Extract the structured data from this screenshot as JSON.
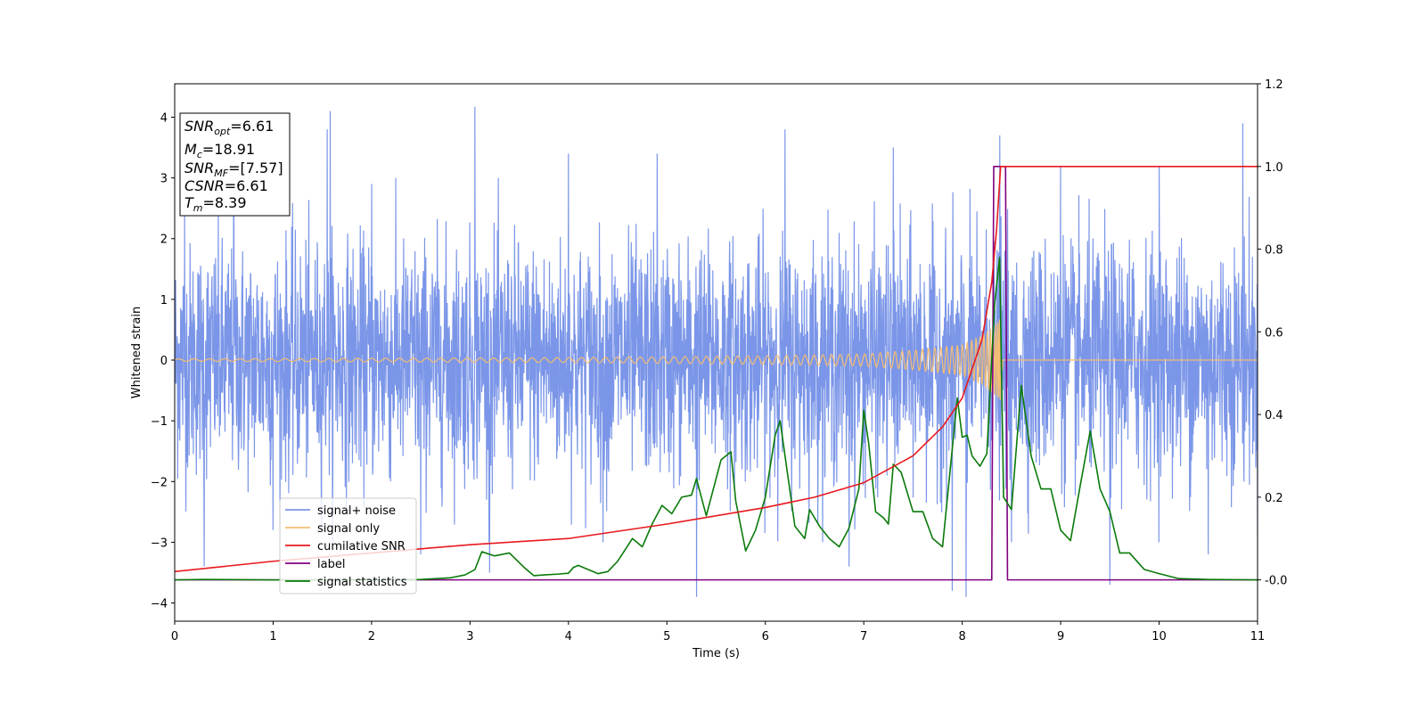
{
  "chart_data": {
    "type": "line",
    "xlabel": "Time (s)",
    "ylabel": "Whitened strain",
    "xlim": [
      0,
      11
    ],
    "ylim": [
      -4.3,
      4.55
    ],
    "y2lim": [
      -0.1,
      1.2
    ],
    "xticks": [
      0,
      1,
      2,
      3,
      4,
      5,
      6,
      7,
      8,
      9,
      10,
      11
    ],
    "yticks": [
      -4,
      -3,
      -2,
      -1,
      0,
      1,
      2,
      3,
      4
    ],
    "y2ticks": [
      "-0.0",
      "0.2",
      "0.4",
      "0.6",
      "0.8",
      "1.0",
      "1.2"
    ],
    "y2tick_values": [
      0.0,
      0.2,
      0.4,
      0.6,
      0.8,
      1.0,
      1.2
    ],
    "grid": false,
    "legend_position": "lower-left",
    "merger_time": 8.39,
    "series": [
      {
        "name": "signal+ noise",
        "axis": "left",
        "color": "#7b96e8",
        "description_values": "gaussian-like noise, typical range -2.5 to 2.5, max 4.17 near t=3.05, min -3.9 near t=5.3",
        "x": [
          0.1,
          0.3,
          0.6,
          1.0,
          1.55,
          1.58,
          2.0,
          2.5,
          3.05,
          3.2,
          4.0,
          4.35,
          4.9,
          5.3,
          6.2,
          6.85,
          7.3,
          7.9,
          8.04,
          8.38,
          8.5,
          9.0,
          9.5,
          10.0,
          10.5,
          10.85,
          11.0
        ],
        "values": [
          2.5,
          -3.4,
          3.5,
          -2.8,
          3.8,
          4.1,
          2.9,
          -3.2,
          4.17,
          -3.5,
          3.4,
          -3.0,
          3.4,
          -3.9,
          3.8,
          -3.4,
          3.5,
          -3.8,
          -3.9,
          3.7,
          -3.0,
          3.2,
          -3.7,
          3.2,
          -3.2,
          3.9,
          -2.9
        ]
      },
      {
        "name": "signal only",
        "axis": "left",
        "color": "#f5bd72",
        "x": [
          0,
          4,
          6,
          7,
          7.5,
          8.0,
          8.2,
          8.35,
          8.39,
          8.42,
          11
        ],
        "amplitude": [
          0.02,
          0.04,
          0.07,
          0.1,
          0.16,
          0.25,
          0.4,
          0.6,
          0.7,
          0,
          0
        ]
      },
      {
        "name": "cumilative SNR",
        "axis": "right",
        "color": "#e8191e",
        "x": [
          0,
          1,
          2,
          3,
          4,
          5,
          6,
          6.5,
          7,
          7.5,
          7.8,
          8.0,
          8.2,
          8.3,
          8.35,
          8.39,
          8.42,
          11
        ],
        "values": [
          0.02,
          0.045,
          0.065,
          0.085,
          0.1,
          0.135,
          0.175,
          0.2,
          0.235,
          0.3,
          0.37,
          0.44,
          0.58,
          0.72,
          0.85,
          1.0,
          1.0,
          1.0
        ]
      },
      {
        "name": "label",
        "axis": "right",
        "color": "#800080",
        "x": [
          0,
          8.3,
          8.32,
          8.44,
          8.46,
          11
        ],
        "values": [
          0,
          0,
          1.0,
          1.0,
          0,
          0
        ]
      },
      {
        "name": "signal statistics",
        "axis": "right",
        "color": "#0a7a0a",
        "x": [
          0,
          0.3,
          1.0,
          2.0,
          2.5,
          2.8,
          2.95,
          3.05,
          3.12,
          3.25,
          3.4,
          3.55,
          3.65,
          3.75,
          3.9,
          4.0,
          4.05,
          4.1,
          4.2,
          4.3,
          4.4,
          4.5,
          4.65,
          4.75,
          4.85,
          4.95,
          5.05,
          5.15,
          5.25,
          5.3,
          5.4,
          5.55,
          5.65,
          5.7,
          5.8,
          5.9,
          6.0,
          6.1,
          6.15,
          6.2,
          6.3,
          6.4,
          6.45,
          6.55,
          6.65,
          6.75,
          6.85,
          6.95,
          7.0,
          7.05,
          7.12,
          7.2,
          7.25,
          7.3,
          7.38,
          7.5,
          7.6,
          7.7,
          7.8,
          7.95,
          8.0,
          8.05,
          8.1,
          8.18,
          8.25,
          8.33,
          8.38,
          8.42,
          8.5,
          8.6,
          8.7,
          8.8,
          8.9,
          9.0,
          9.1,
          9.2,
          9.3,
          9.4,
          9.5,
          9.6,
          9.7,
          9.85,
          10.0,
          10.2,
          10.5,
          11.0
        ],
        "values": [
          0,
          0.001,
          0,
          0,
          0.001,
          0.005,
          0.012,
          0.025,
          0.068,
          0.058,
          0.065,
          0.03,
          0.01,
          0.012,
          0.014,
          0.016,
          0.03,
          0.035,
          0.025,
          0.015,
          0.02,
          0.045,
          0.1,
          0.08,
          0.135,
          0.18,
          0.16,
          0.2,
          0.205,
          0.245,
          0.155,
          0.29,
          0.31,
          0.19,
          0.07,
          0.12,
          0.2,
          0.35,
          0.385,
          0.3,
          0.13,
          0.1,
          0.17,
          0.13,
          0.1,
          0.08,
          0.125,
          0.22,
          0.41,
          0.33,
          0.165,
          0.15,
          0.135,
          0.28,
          0.26,
          0.165,
          0.165,
          0.1,
          0.08,
          0.44,
          0.345,
          0.35,
          0.3,
          0.275,
          0.305,
          0.67,
          0.78,
          0.2,
          0.17,
          0.47,
          0.3,
          0.22,
          0.22,
          0.12,
          0.095,
          0.23,
          0.36,
          0.22,
          0.165,
          0.065,
          0.065,
          0.025,
          0.015,
          0.003,
          0.001,
          0
        ]
      }
    ],
    "legend": [
      {
        "label": "signal+ noise",
        "color": "#7b96e8"
      },
      {
        "label": "signal only",
        "color": "#f5bd72"
      },
      {
        "label": "cumilative SNR",
        "color": "#e8191e"
      },
      {
        "label": "label",
        "color": "#800080"
      },
      {
        "label": "signal statistics",
        "color": "#0a7a0a"
      }
    ],
    "annotation": {
      "lines": [
        {
          "main": "SNR",
          "sub": "opt",
          "value": "=6.61"
        },
        {
          "main": "M",
          "sub": "c",
          "value": "=18.91"
        },
        {
          "main": "SNR",
          "sub": "MF",
          "value": "=[7.57]"
        },
        {
          "main": "CSNR",
          "sub": "",
          "value": "=6.61"
        },
        {
          "main": "T",
          "sub": "m",
          "value": "=8.39"
        }
      ]
    }
  }
}
